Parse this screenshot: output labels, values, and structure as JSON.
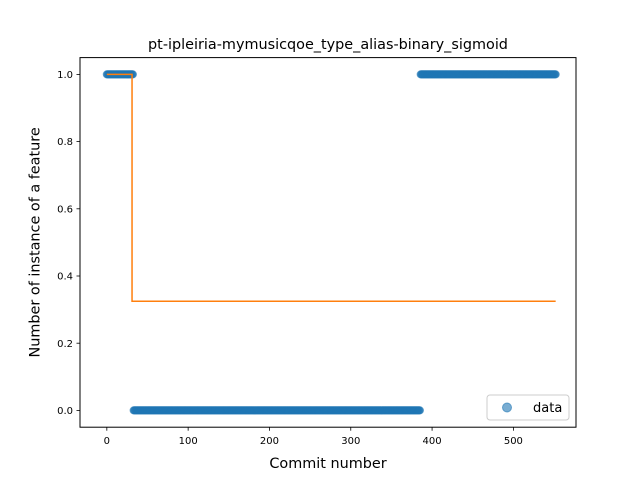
{
  "chart_data": {
    "type": "scatter",
    "title": "pt-ipleiria-mymusicqoe_type_alias-binary_sigmoid",
    "xlabel": "Commit number",
    "ylabel": "Number of instance of a feature",
    "xlim": [
      -33,
      577
    ],
    "ylim": [
      -0.05,
      1.05
    ],
    "xticks": [
      0,
      100,
      200,
      300,
      400,
      500
    ],
    "yticks": [
      0.0,
      0.2,
      0.4,
      0.6,
      0.8,
      1.0
    ],
    "xtick_labels": [
      "0",
      "100",
      "200",
      "300",
      "400",
      "500"
    ],
    "ytick_labels": [
      "0.0",
      "0.2",
      "0.4",
      "0.6",
      "0.8",
      "1.0"
    ],
    "grid": false,
    "legend": {
      "position": "lower right",
      "entries": [
        "data"
      ]
    },
    "series": [
      {
        "name": "data",
        "kind": "scatter",
        "color": "#1f77b4",
        "segments": [
          {
            "x_start": 0,
            "x_end": 32,
            "y": 1
          },
          {
            "x_start": 33,
            "x_end": 385,
            "y": 0
          },
          {
            "x_start": 386,
            "x_end": 552,
            "y": 1
          }
        ]
      },
      {
        "kind": "line",
        "color": "#ff7f0e",
        "x": [
          0,
          31,
          31,
          552
        ],
        "y": [
          1.0,
          1.0,
          0.325,
          0.325
        ]
      }
    ]
  }
}
